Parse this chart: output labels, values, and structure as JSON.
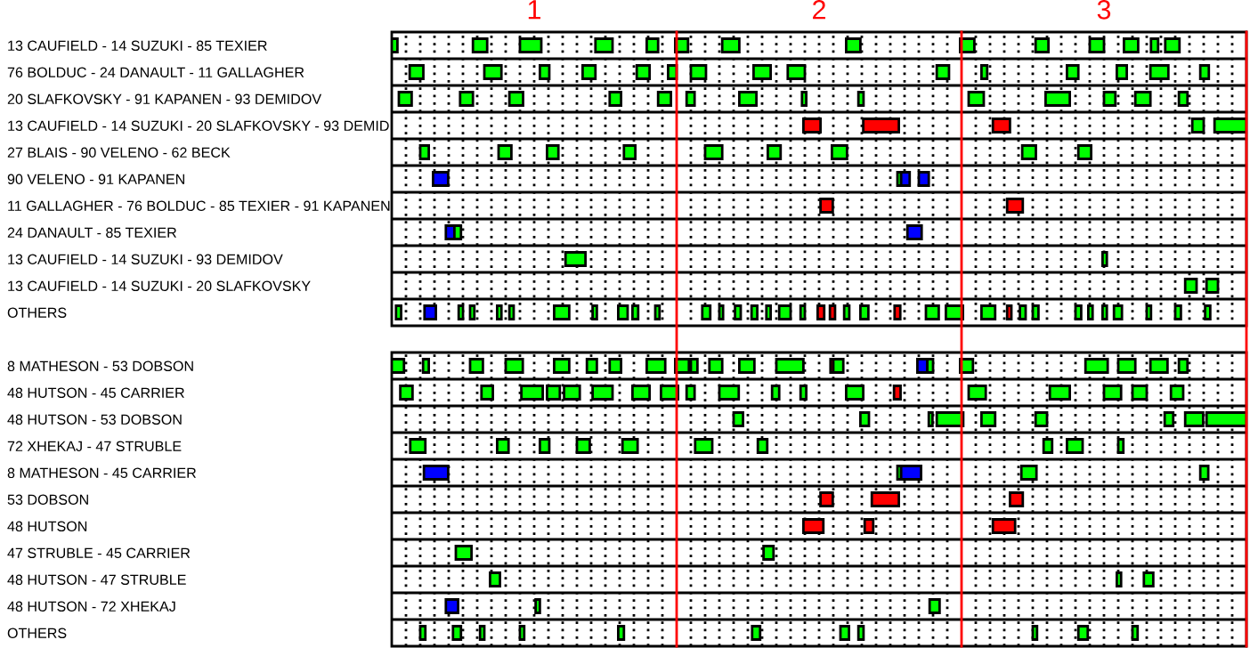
{
  "chart_data": {
    "type": "bar",
    "orientation": "horizontal",
    "grid": "x",
    "categories": [
      "13 CAUFIELD - 14 SUZUKI - 85 TEXIER",
      "76 BOLDUC - 24 DANAULT - 11 GALLAGHER",
      "20 SLAFKOVSKY - 91 KAPANEN - 93 DEMIDOV",
      "13 CAUFIELD - 14 SUZUKI - 20 SLAFKOVSKY - 93 DEMID",
      "27 BLAIS - 90 VELENO - 62 BECK",
      "90 VELENO - 91 KAPANEN",
      "11 GALLAGHER - 76 BOLDUC - 85 TEXIER - 91 KAPANEN",
      "24 DANAULT - 85 TEXIER",
      "13 CAUFIELD - 14 SUZUKI - 93 DEMIDOV",
      "13 CAUFIELD - 14 SUZUKI - 20 SLAFKOVSKY",
      "OTHERS",
      null,
      "8 MATHESON - 53 DOBSON",
      "48 HUTSON - 45 CARRIER",
      "48 HUTSON - 53 DOBSON",
      "72 XHEKAJ - 47 STRUBLE",
      "8 MATHESON - 45 CARRIER",
      "53 DOBSON",
      "48 HUTSON",
      "47 STRUBLE - 45 CARRIER",
      "48 HUTSON - 47 STRUBLE",
      "48 HUTSON - 72 XHEKAJ",
      "OTHERS"
    ],
    "xlim": [
      0.5,
      3.5
    ],
    "xticks": [
      {
        "value": 0.55,
        "label": null
      },
      {
        "value": 0.6,
        "label": null
      },
      {
        "value": 0.65,
        "label": null
      },
      {
        "value": 0.7,
        "label": null
      },
      {
        "value": 0.75,
        "label": null
      },
      {
        "value": 0.8,
        "label": null
      },
      {
        "value": 0.85,
        "label": null
      },
      {
        "value": 0.9,
        "label": null
      },
      {
        "value": 0.95,
        "label": null
      },
      1,
      {
        "value": 1.05,
        "label": null
      },
      {
        "value": 1.1,
        "label": null
      },
      {
        "value": 1.15,
        "label": null
      },
      {
        "value": 1.2,
        "label": null
      },
      {
        "value": 1.25,
        "label": null
      },
      {
        "value": 1.3,
        "label": null
      },
      {
        "value": 1.35,
        "label": null
      },
      {
        "value": 1.4,
        "label": null
      },
      {
        "value": 1.45,
        "label": null
      },
      {
        "value": 1.55,
        "label": null
      },
      {
        "value": 1.6,
        "label": null
      },
      {
        "value": 1.65,
        "label": null
      },
      {
        "value": 1.7,
        "label": null
      },
      {
        "value": 1.75,
        "label": null
      },
      {
        "value": 1.8,
        "label": null
      },
      {
        "value": 1.85,
        "label": null
      },
      {
        "value": 1.9,
        "label": null
      },
      {
        "value": 1.95,
        "label": null
      },
      2,
      {
        "value": 2.05,
        "label": null
      },
      {
        "value": 2.1,
        "label": null
      },
      {
        "value": 2.15,
        "label": null
      },
      {
        "value": 2.2,
        "label": null
      },
      {
        "value": 2.25,
        "label": null
      },
      {
        "value": 2.3,
        "label": null
      },
      {
        "value": 2.35,
        "label": null
      },
      {
        "value": 2.4,
        "label": null
      },
      {
        "value": 2.45,
        "label": null
      },
      {
        "value": 2.55,
        "label": null
      },
      {
        "value": 2.6,
        "label": null
      },
      {
        "value": 2.65,
        "label": null
      },
      {
        "value": 2.7,
        "label": null
      },
      {
        "value": 2.75,
        "label": null
      },
      {
        "value": 2.8,
        "label": null
      },
      {
        "value": 2.85,
        "label": null
      },
      {
        "value": 2.9,
        "label": null
      },
      {
        "value": 2.95,
        "label": null
      },
      3,
      {
        "value": 3.05,
        "label": null
      },
      {
        "value": 3.1,
        "label": null
      },
      {
        "value": 3.15,
        "label": null
      },
      {
        "value": 3.2,
        "label": null
      },
      {
        "value": 3.25,
        "label": null
      },
      {
        "value": 3.3,
        "label": null
      },
      {
        "value": 3.35,
        "label": null
      },
      {
        "value": 3.4,
        "label": null
      },
      {
        "value": 3.45,
        "label": null
      }
    ],
    "ref_lines": [
      {
        "axis": "x",
        "value": 1.5,
        "color": "#ff0000"
      },
      {
        "axis": "x",
        "value": 2.5,
        "color": "#ff0000"
      },
      {
        "axis": "x",
        "value": 3.5,
        "color": "#ff0000"
      }
    ],
    "series": [
      {
        "color": "#00ff00",
        "base": [
          0.5,
          0.563,
          0.525,
          1.945,
          0.6,
          0.645,
          2.005,
          0.69,
          1.11,
          3.285,
          0.515,
          null,
          0.5,
          0.53,
          1.7,
          0.565,
          0.613,
          2.005,
          1.945,
          0.725,
          0.845,
          0.69,
          0.6
        ],
        "values": [
          0.02,
          0.048,
          0.045,
          0.06,
          0.03,
          0.053,
          0.043,
          0.03,
          0.07,
          0.04,
          0.018,
          null,
          0.043,
          0.043,
          0.033,
          0.053,
          0.085,
          0.043,
          0.07,
          0.055,
          0.035,
          0.043,
          0.018
        ],
        "colors": [
          "#00ff00",
          "#00ff00",
          "#00ff00",
          "#ff0000",
          "#00ff00",
          "#0000ff",
          "#ff0000",
          "#0000ff",
          "#00ff00",
          "#00ff00",
          "#00ff00",
          null,
          "#00ff00",
          "#00ff00",
          "#00ff00",
          "#00ff00",
          "#0000ff",
          "#ff0000",
          "#ff0000",
          "#00ff00",
          "#00ff00",
          "#0000ff",
          "#00ff00"
        ]
      },
      {
        "color": "#00ff00",
        "base": [
          0.785,
          0.825,
          0.74,
          2.155,
          0.875,
          2.275,
          2.66,
          0.72,
          2.995,
          3.36,
          0.615,
          null,
          0.61,
          0.815,
          2.145,
          0.87,
          2.275,
          2.185,
          2.16,
          1.805,
          3.045,
          1.005,
          0.715
        ],
        "values": [
          0.05,
          0.06,
          0.045,
          0.125,
          0.045,
          0.013,
          0.055,
          0.023,
          0.015,
          0.04,
          0.04,
          null,
          0.02,
          0.04,
          0.03,
          0.04,
          0.013,
          0.095,
          0.03,
          0.035,
          0.015,
          0.015,
          0.028
        ],
        "colors": [
          "#00ff00",
          "#00ff00",
          "#00ff00",
          "#ff0000",
          "#00ff00",
          "#00ff00",
          "#ff0000",
          "#00ff00",
          "#00ff00",
          "#00ff00",
          "#0000ff",
          null,
          "#00ff00",
          "#00ff00",
          "#00ff00",
          "#00ff00",
          "#00ff00",
          "#ff0000",
          "#ff0000",
          "#00ff00",
          "#00ff00",
          "#00ff00",
          "#00ff00"
        ]
      },
      {
        "color": "#00ff00",
        "base": [
          0.95,
          1.02,
          0.913,
          2.61,
          1.045,
          2.288,
          null,
          2.31,
          null,
          null,
          0.735,
          null,
          0.775,
          0.955,
          2.385,
          1.02,
          2.288,
          2.67,
          2.61,
          null,
          3.14,
          2.388,
          0.81
        ],
        "values": [
          0.075,
          0.033,
          0.048,
          0.06,
          0.04,
          0.03,
          null,
          0.05,
          null,
          null,
          0.015,
          null,
          0.045,
          0.075,
          0.013,
          0.033,
          0.07,
          0.045,
          0.078,
          null,
          0.033,
          0.035,
          0.015
        ],
        "colors": [
          "#00ff00",
          "#00ff00",
          "#00ff00",
          "#ff0000",
          "#00ff00",
          "#0000ff",
          null,
          "#0000ff",
          null,
          null,
          "#00ff00",
          null,
          "#00ff00",
          "#00ff00",
          "#00ff00",
          "#00ff00",
          "#0000ff",
          "#ff0000",
          "#ff0000",
          null,
          "#00ff00",
          "#00ff00",
          "#00ff00"
        ]
      },
      {
        "color": "#00ff00",
        "base": [
          1.215,
          1.17,
          1.265,
          3.31,
          1.315,
          2.35,
          null,
          null,
          null,
          null,
          0.775,
          null,
          0.9,
          1.045,
          2.413,
          1.15,
          2.71,
          null,
          null,
          null,
          null,
          null,
          0.95
        ],
        "values": [
          0.06,
          0.045,
          0.04,
          0.04,
          0.04,
          0.035,
          null,
          null,
          null,
          null,
          0.015,
          null,
          0.06,
          0.045,
          0.093,
          0.045,
          0.053,
          null,
          null,
          null,
          null,
          null,
          0.015
        ],
        "colors": [
          "#00ff00",
          "#00ff00",
          "#00ff00",
          "#00ff00",
          "#00ff00",
          "#0000ff",
          null,
          null,
          null,
          null,
          "#00ff00",
          null,
          "#00ff00",
          "#00ff00",
          "#00ff00",
          "#00ff00",
          "#00ff00",
          null,
          null,
          null,
          null,
          null,
          "#00ff00"
        ]
      },
      {
        "color": "#00ff00",
        "base": [
          1.395,
          1.36,
          1.435,
          3.388,
          1.6,
          null,
          null,
          null,
          null,
          null,
          0.87,
          null,
          1.07,
          1.105,
          2.57,
          1.31,
          3.338,
          null,
          null,
          null,
          null,
          null,
          1.295
        ],
        "values": [
          0.04,
          0.045,
          0.045,
          0.112,
          0.06,
          null,
          null,
          null,
          null,
          null,
          0.015,
          null,
          0.053,
          0.055,
          0.048,
          0.053,
          0.028,
          null,
          null,
          null,
          null,
          null,
          0.02
        ]
      },
      {
        "color": "#00ff00",
        "base": [
          1.495,
          1.47,
          1.535,
          null,
          1.82,
          null,
          null,
          null,
          null,
          null,
          0.913,
          null,
          1.185,
          1.205,
          2.76,
          1.565,
          null,
          null,
          null,
          null,
          null,
          null,
          1.765
        ],
        "values": [
          0.045,
          0.03,
          0.028,
          null,
          0.045,
          null,
          null,
          null,
          null,
          null,
          0.015,
          null,
          0.035,
          0.07,
          0.04,
          0.06,
          null,
          null,
          null,
          null,
          null,
          null,
          0.028
        ]
      },
      {
        "color": "#00ff00",
        "base": [
          1.66,
          1.55,
          1.72,
          null,
          2.045,
          null,
          null,
          null,
          null,
          null,
          1.07,
          null,
          1.265,
          1.345,
          3.213,
          1.785,
          null,
          null,
          null,
          null,
          null,
          null,
          2.075
        ],
        "values": [
          0.06,
          0.053,
          0.06,
          null,
          0.053,
          null,
          null,
          null,
          null,
          null,
          0.053,
          null,
          0.04,
          0.06,
          0.03,
          0.033,
          null,
          null,
          null,
          null,
          null,
          null,
          0.03
        ]
      },
      {
        "color": "#00ff00",
        "base": [
          2.095,
          1.77,
          1.94,
          null,
          2.713,
          null,
          null,
          null,
          null,
          null,
          1.205,
          null,
          1.395,
          1.445,
          3.285,
          2.788,
          null,
          null,
          null,
          null,
          null,
          null,
          2.138
        ],
        "values": [
          0.05,
          0.06,
          0.015,
          null,
          0.048,
          null,
          null,
          null,
          null,
          null,
          0.015,
          null,
          0.065,
          0.06,
          0.063,
          0.03,
          null,
          null,
          null,
          null,
          null,
          null,
          0.018
        ]
      },
      {
        "color": "#00ff00",
        "base": [
          2.495,
          1.89,
          2.138,
          null,
          2.91,
          null,
          null,
          null,
          null,
          null,
          1.295,
          null,
          1.495,
          1.535,
          3.36,
          2.87,
          null,
          null,
          null,
          null,
          null,
          null,
          2.75
        ],
        "values": [
          0.05,
          0.06,
          0.018,
          null,
          0.045,
          null,
          null,
          null,
          null,
          null,
          0.033,
          null,
          0.048,
          0.028,
          0.14,
          0.055,
          null,
          null,
          null,
          null,
          null,
          null,
          0.015
        ]
      },
      {
        "color": "#00ff00",
        "base": [
          2.76,
          2.413,
          2.525,
          null,
          null,
          null,
          null,
          null,
          null,
          null,
          1.345,
          null,
          1.55,
          1.65,
          null,
          3.05,
          null,
          null,
          null,
          null,
          null,
          null,
          2.91
        ],
        "values": [
          0.045,
          0.043,
          0.053,
          null,
          null,
          null,
          null,
          null,
          null,
          null,
          0.02,
          null,
          0.023,
          0.068,
          null,
          0.018,
          null,
          null,
          null,
          null,
          null,
          null,
          0.033
        ]
      },
      {
        "color": "#00ff00",
        "base": [
          2.95,
          2.57,
          2.795,
          null,
          null,
          null,
          null,
          null,
          null,
          null,
          1.425,
          null,
          1.615,
          1.835,
          null,
          null,
          null,
          null,
          null,
          null,
          null,
          null,
          3.1
        ],
        "values": [
          0.05,
          0.02,
          0.085,
          null,
          null,
          null,
          null,
          null,
          null,
          null,
          0.015,
          null,
          0.045,
          0.025,
          null,
          null,
          null,
          null,
          null,
          null,
          null,
          null,
          0.018
        ]
      },
      {
        "color": "#00ff00",
        "base": [
          3.07,
          2.87,
          3.0,
          null,
          null,
          null,
          null,
          null,
          null,
          null,
          1.59,
          null,
          1.72,
          1.935,
          null,
          null,
          null,
          null,
          null,
          null,
          null,
          null,
          null
        ],
        "values": [
          0.05,
          0.04,
          0.04,
          null,
          null,
          null,
          null,
          null,
          null,
          null,
          0.028,
          null,
          0.053,
          0.02,
          null,
          null,
          null,
          null,
          null,
          null,
          null,
          null,
          null
        ]
      },
      {
        "color": "#00ff00",
        "base": [
          3.165,
          3.045,
          3.11,
          null,
          null,
          null,
          null,
          null,
          null,
          null,
          1.65,
          null,
          1.85,
          2.095,
          null,
          null,
          null,
          null,
          null,
          null,
          null,
          null,
          null
        ],
        "values": [
          0.025,
          0.035,
          0.053,
          null,
          null,
          null,
          null,
          null,
          null,
          null,
          0.013,
          null,
          0.095,
          0.06,
          null,
          null,
          null,
          null,
          null,
          null,
          null,
          null,
          null
        ]
      },
      {
        "color": "#00ff00",
        "base": [
          3.215,
          3.163,
          3.263,
          null,
          null,
          null,
          null,
          null,
          null,
          null,
          1.705,
          null,
          2.04,
          2.263,
          null,
          null,
          null,
          null,
          null,
          null,
          null,
          null,
          null
        ],
        "values": [
          0.05,
          0.063,
          0.03,
          null,
          null,
          null,
          null,
          null,
          null,
          null,
          0.02,
          null,
          0.01,
          0.023,
          null,
          null,
          null,
          null,
          null,
          null,
          null,
          null,
          null
        ],
        "colors": [
          "#00ff00",
          "#00ff00",
          "#00ff00",
          null,
          null,
          null,
          null,
          null,
          null,
          null,
          "#00ff00",
          null,
          "#ff0000",
          "#ff0000",
          null,
          null,
          null,
          null,
          null,
          null,
          null,
          null,
          null
        ]
      },
      {
        "color": "#00ff00",
        "base": [
          null,
          3.338,
          null,
          null,
          null,
          null,
          null,
          null,
          null,
          null,
          1.763,
          null,
          2.05,
          2.525,
          null,
          null,
          null,
          null,
          null,
          null,
          null,
          null,
          null
        ],
        "values": [
          null,
          0.03,
          null,
          null,
          null,
          null,
          null,
          null,
          null,
          null,
          0.02,
          null,
          0.035,
          0.06,
          null,
          null,
          null,
          null,
          null,
          null,
          null,
          null,
          null
        ]
      },
      {
        "color": "#00ff00",
        "base": [
          null,
          null,
          null,
          null,
          null,
          null,
          null,
          null,
          null,
          null,
          1.815,
          null,
          2.345,
          2.81,
          null,
          null,
          null,
          null,
          null,
          null,
          null,
          null,
          null
        ],
        "values": [
          null,
          null,
          null,
          null,
          null,
          null,
          null,
          null,
          null,
          null,
          0.015,
          null,
          0.035,
          0.07,
          null,
          null,
          null,
          null,
          null,
          null,
          null,
          null,
          null
        ],
        "colors": [
          null,
          null,
          null,
          null,
          null,
          null,
          null,
          null,
          null,
          null,
          "#00ff00",
          null,
          "#0000ff",
          "#00ff00",
          null,
          null,
          null,
          null,
          null,
          null,
          null,
          null,
          null
        ]
      },
      {
        "color": "#00ff00",
        "base": [
          null,
          null,
          null,
          null,
          null,
          null,
          null,
          null,
          null,
          null,
          1.86,
          null,
          2.38,
          3.0,
          null,
          null,
          null,
          null,
          null,
          null,
          null,
          null,
          null
        ],
        "values": [
          null,
          null,
          null,
          null,
          null,
          null,
          null,
          null,
          null,
          null,
          0.04,
          null,
          0.02,
          0.06,
          null,
          null,
          null,
          null,
          null,
          null,
          null,
          null,
          null
        ]
      },
      {
        "color": "#00ff00",
        "base": [
          null,
          null,
          null,
          null,
          null,
          null,
          null,
          null,
          null,
          null,
          1.935,
          null,
          2.495,
          3.1,
          null,
          null,
          null,
          null,
          null,
          null,
          null,
          null,
          null
        ],
        "values": [
          null,
          null,
          null,
          null,
          null,
          null,
          null,
          null,
          null,
          null,
          0.015,
          null,
          0.045,
          0.05,
          null,
          null,
          null,
          null,
          null,
          null,
          null,
          null,
          null
        ]
      },
      {
        "color": "#00ff00",
        "base": [
          null,
          null,
          null,
          null,
          null,
          null,
          null,
          null,
          null,
          null,
          1.995,
          null,
          2.935,
          3.235,
          null,
          null,
          null,
          null,
          null,
          null,
          null,
          null,
          null
        ],
        "values": [
          null,
          null,
          null,
          null,
          null,
          null,
          null,
          null,
          null,
          null,
          0.023,
          null,
          0.078,
          0.043,
          null,
          null,
          null,
          null,
          null,
          null,
          null,
          null,
          null
        ],
        "colors": [
          null,
          null,
          null,
          null,
          null,
          null,
          null,
          null,
          null,
          null,
          "#ff0000",
          null,
          "#00ff00",
          "#00ff00",
          null,
          null,
          null,
          null,
          null,
          null,
          null,
          null,
          null
        ]
      },
      {
        "color": "#00ff00",
        "base": [
          null,
          null,
          null,
          null,
          null,
          null,
          null,
          null,
          null,
          null,
          2.038,
          null,
          3.05,
          null,
          null,
          null,
          null,
          null,
          null,
          null,
          null,
          null,
          null
        ],
        "values": [
          null,
          null,
          null,
          null,
          null,
          null,
          null,
          null,
          null,
          null,
          0.018,
          null,
          0.06,
          null,
          null,
          null,
          null,
          null,
          null,
          null,
          null,
          null,
          null
        ],
        "colors": [
          null,
          null,
          null,
          null,
          null,
          null,
          null,
          null,
          null,
          null,
          "#ff0000",
          null,
          "#00ff00",
          null,
          null,
          null,
          null,
          null,
          null,
          null,
          null,
          null,
          null
        ]
      },
      {
        "color": "#00ff00",
        "base": [
          null,
          null,
          null,
          null,
          null,
          null,
          null,
          null,
          null,
          null,
          2.088,
          null,
          3.163,
          null,
          null,
          null,
          null,
          null,
          null,
          null,
          null,
          null,
          null
        ],
        "values": [
          null,
          null,
          null,
          null,
          null,
          null,
          null,
          null,
          null,
          null,
          0.018,
          null,
          0.06,
          null,
          null,
          null,
          null,
          null,
          null,
          null,
          null,
          null,
          null
        ]
      },
      {
        "color": "#00ff00",
        "base": [
          null,
          null,
          null,
          null,
          null,
          null,
          null,
          null,
          null,
          null,
          2.145,
          null,
          3.263,
          null,
          null,
          null,
          null,
          null,
          null,
          null,
          null,
          null,
          null
        ],
        "values": [
          null,
          null,
          null,
          null,
          null,
          null,
          null,
          null,
          null,
          null,
          0.028,
          null,
          0.03,
          null,
          null,
          null,
          null,
          null,
          null,
          null,
          null,
          null,
          null
        ]
      },
      {
        "color": "#ff0000",
        "base": [
          null,
          null,
          null,
          null,
          null,
          null,
          null,
          null,
          null,
          null,
          2.265,
          null,
          null,
          null,
          null,
          null,
          null,
          null,
          null,
          null,
          null,
          null,
          null
        ],
        "values": [
          null,
          null,
          null,
          null,
          null,
          null,
          null,
          null,
          null,
          null,
          0.02,
          null,
          null,
          null,
          null,
          null,
          null,
          null,
          null,
          null,
          null,
          null,
          null
        ]
      },
      {
        "color": "#00ff00",
        "base": [
          null,
          null,
          null,
          null,
          null,
          null,
          null,
          null,
          null,
          null,
          2.375,
          null,
          null,
          null,
          null,
          null,
          null,
          null,
          null,
          null,
          null,
          null,
          null
        ],
        "values": [
          null,
          null,
          null,
          null,
          null,
          null,
          null,
          null,
          null,
          null,
          0.045,
          null,
          null,
          null,
          null,
          null,
          null,
          null,
          null,
          null,
          null,
          null,
          null
        ]
      },
      {
        "color": "#00ff00",
        "base": [
          null,
          null,
          null,
          null,
          null,
          null,
          null,
          null,
          null,
          null,
          2.445,
          null,
          null,
          null,
          null,
          null,
          null,
          null,
          null,
          null,
          null,
          null,
          null
        ],
        "values": [
          null,
          null,
          null,
          null,
          null,
          null,
          null,
          null,
          null,
          null,
          0.06,
          null,
          null,
          null,
          null,
          null,
          null,
          null,
          null,
          null,
          null,
          null,
          null
        ]
      },
      {
        "color": "#00ff00",
        "base": [
          null,
          null,
          null,
          null,
          null,
          null,
          null,
          null,
          null,
          null,
          2.57,
          null,
          null,
          null,
          null,
          null,
          null,
          null,
          null,
          null,
          null,
          null,
          null
        ],
        "values": [
          null,
          null,
          null,
          null,
          null,
          null,
          null,
          null,
          null,
          null,
          0.048,
          null,
          null,
          null,
          null,
          null,
          null,
          null,
          null,
          null,
          null,
          null,
          null
        ]
      },
      {
        "color": "#ff0000",
        "base": [
          null,
          null,
          null,
          null,
          null,
          null,
          null,
          null,
          null,
          null,
          2.66,
          null,
          null,
          null,
          null,
          null,
          null,
          null,
          null,
          null,
          null,
          null,
          null
        ],
        "values": [
          null,
          null,
          null,
          null,
          null,
          null,
          null,
          null,
          null,
          null,
          0.015,
          null,
          null,
          null,
          null,
          null,
          null,
          null,
          null,
          null,
          null,
          null,
          null
        ]
      },
      {
        "color": "#00ff00",
        "base": [
          null,
          null,
          null,
          null,
          null,
          null,
          null,
          null,
          null,
          null,
          2.705,
          null,
          null,
          null,
          null,
          null,
          null,
          null,
          null,
          null,
          null,
          null,
          null
        ],
        "values": [
          null,
          null,
          null,
          null,
          null,
          null,
          null,
          null,
          null,
          null,
          0.02,
          null,
          null,
          null,
          null,
          null,
          null,
          null,
          null,
          null,
          null,
          null,
          null
        ]
      },
      {
        "color": "#00ff00",
        "base": [
          null,
          null,
          null,
          null,
          null,
          null,
          null,
          null,
          null,
          null,
          2.75,
          null,
          null,
          null,
          null,
          null,
          null,
          null,
          null,
          null,
          null,
          null,
          null
        ],
        "values": [
          null,
          null,
          null,
          null,
          null,
          null,
          null,
          null,
          null,
          null,
          0.02,
          null,
          null,
          null,
          null,
          null,
          null,
          null,
          null,
          null,
          null,
          null,
          null
        ]
      },
      {
        "color": "#00ff00",
        "base": [
          null,
          null,
          null,
          null,
          null,
          null,
          null,
          null,
          null,
          null,
          2.9,
          null,
          null,
          null,
          null,
          null,
          null,
          null,
          null,
          null,
          null,
          null,
          null
        ],
        "values": [
          null,
          null,
          null,
          null,
          null,
          null,
          null,
          null,
          null,
          null,
          0.02,
          null,
          null,
          null,
          null,
          null,
          null,
          null,
          null,
          null,
          null,
          null,
          null
        ]
      },
      {
        "color": "#00ff00",
        "base": [
          null,
          null,
          null,
          null,
          null,
          null,
          null,
          null,
          null,
          null,
          2.945,
          null,
          null,
          null,
          null,
          null,
          null,
          null,
          null,
          null,
          null,
          null,
          null
        ],
        "values": [
          null,
          null,
          null,
          null,
          null,
          null,
          null,
          null,
          null,
          null,
          0.015,
          null,
          null,
          null,
          null,
          null,
          null,
          null,
          null,
          null,
          null,
          null,
          null
        ]
      },
      {
        "color": "#00ff00",
        "base": [
          null,
          null,
          null,
          null,
          null,
          null,
          null,
          null,
          null,
          null,
          2.995,
          null,
          null,
          null,
          null,
          null,
          null,
          null,
          null,
          null,
          null,
          null,
          null
        ],
        "values": [
          null,
          null,
          null,
          null,
          null,
          null,
          null,
          null,
          null,
          null,
          0.015,
          null,
          null,
          null,
          null,
          null,
          null,
          null,
          null,
          null,
          null,
          null,
          null
        ]
      },
      {
        "color": "#00ff00",
        "base": [
          null,
          null,
          null,
          null,
          null,
          null,
          null,
          null,
          null,
          null,
          3.035,
          null,
          null,
          null,
          null,
          null,
          null,
          null,
          null,
          null,
          null,
          null,
          null
        ],
        "values": [
          null,
          null,
          null,
          null,
          null,
          null,
          null,
          null,
          null,
          null,
          0.028,
          null,
          null,
          null,
          null,
          null,
          null,
          null,
          null,
          null,
          null,
          null,
          null
        ]
      },
      {
        "color": "#00ff00",
        "base": [
          null,
          null,
          null,
          null,
          null,
          null,
          null,
          null,
          null,
          null,
          3.15,
          null,
          null,
          null,
          null,
          null,
          null,
          null,
          null,
          null,
          null,
          null,
          null
        ],
        "values": [
          null,
          null,
          null,
          null,
          null,
          null,
          null,
          null,
          null,
          null,
          0.015,
          null,
          null,
          null,
          null,
          null,
          null,
          null,
          null,
          null,
          null,
          null,
          null
        ]
      },
      {
        "color": "#00ff00",
        "base": [
          null,
          null,
          null,
          null,
          null,
          null,
          null,
          null,
          null,
          null,
          3.25,
          null,
          null,
          null,
          null,
          null,
          null,
          null,
          null,
          null,
          null,
          null,
          null
        ],
        "values": [
          null,
          null,
          null,
          null,
          null,
          null,
          null,
          null,
          null,
          null,
          0.02,
          null,
          null,
          null,
          null,
          null,
          null,
          null,
          null,
          null,
          null,
          null,
          null
        ]
      },
      {
        "color": "#00ff00",
        "base": [
          null,
          null,
          null,
          null,
          null,
          null,
          null,
          null,
          null,
          null,
          3.355,
          null,
          null,
          null,
          null,
          null,
          null,
          null,
          null,
          null,
          null,
          null,
          null
        ],
        "values": [
          null,
          null,
          null,
          null,
          null,
          null,
          null,
          null,
          null,
          null,
          0.018,
          null,
          null,
          null,
          null,
          null,
          null,
          null,
          null,
          null,
          null,
          null,
          null
        ]
      }
    ]
  }
}
